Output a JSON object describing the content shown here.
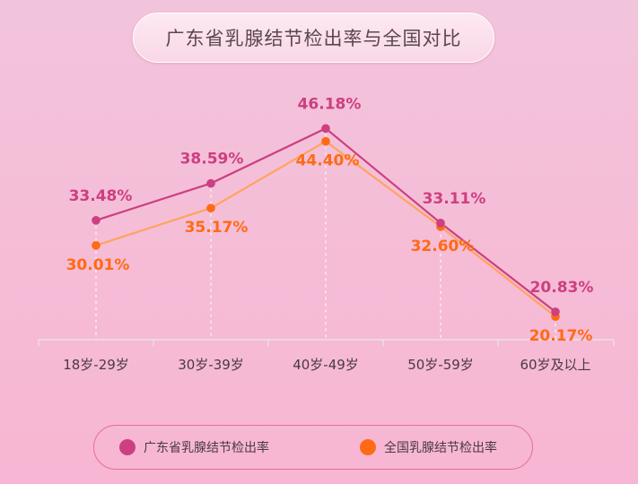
{
  "title": "广东省乳腺结节检出率与全国对比",
  "chart_data": {
    "type": "line",
    "title": "广东省乳腺结节检出率与全国对比",
    "categories": [
      "18岁-29岁",
      "30岁-39岁",
      "40岁-49岁",
      "50岁-59岁",
      "60岁及以上"
    ],
    "series": [
      {
        "name": "广东省乳腺结节检出率",
        "values": [
          33.48,
          38.59,
          46.18,
          33.11,
          20.83
        ],
        "labels": [
          "33.48%",
          "38.59%",
          "46.18%",
          "33.11%",
          "20.83%"
        ],
        "color": "#cc3f80"
      },
      {
        "name": "全国乳腺结节检出率",
        "values": [
          30.01,
          35.17,
          44.4,
          32.6,
          20.17
        ],
        "labels": [
          "30.01%",
          "35.17%",
          "44.40%",
          "32.60%",
          "20.17%"
        ],
        "color": "#ff6a14"
      }
    ],
    "ylim": [
      10,
      50
    ],
    "grid": false,
    "legend": "bottom"
  },
  "colors": {
    "guangdong_line": "#cc3f80",
    "national_line": "#ffa45e",
    "national_marker": "#ff6a14",
    "axis": "#e8e0e4",
    "tick_label": "#4a3a42",
    "legend_border": "#ea6a9c"
  }
}
